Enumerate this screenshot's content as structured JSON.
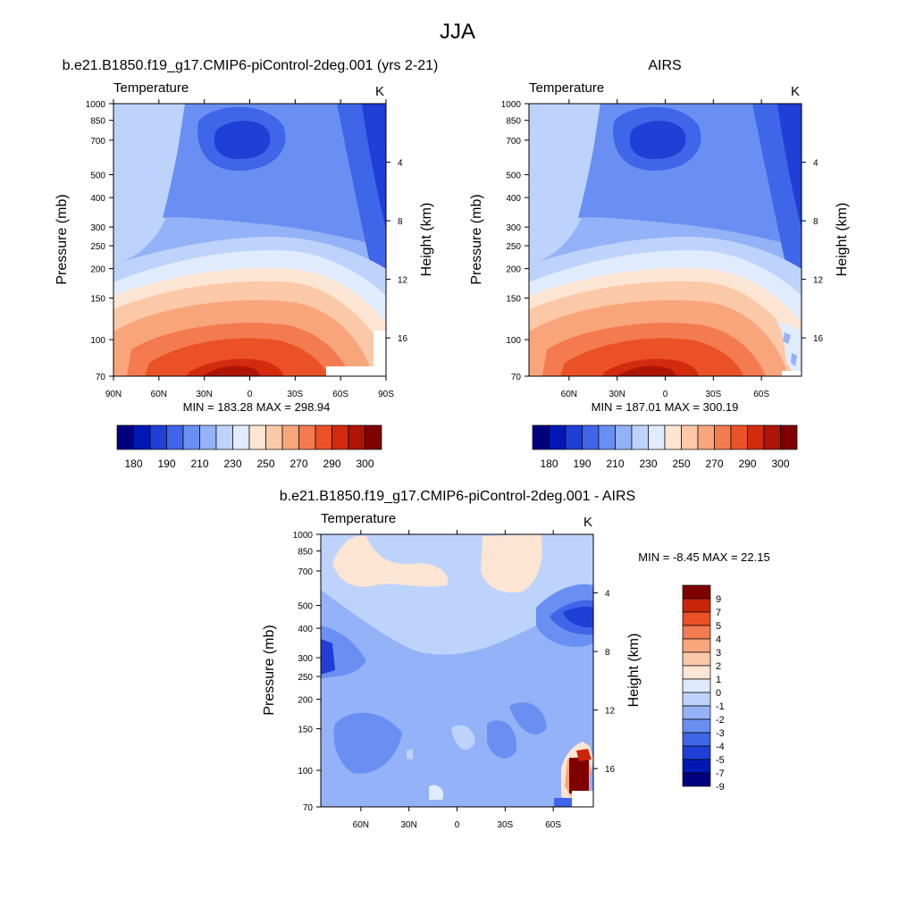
{
  "page": {
    "title": "JJA"
  },
  "panels": {
    "left": {
      "title": "b.e21.B1850.f19_g17.CMIP6-piControl-2deg.001 (yrs 2-21)",
      "subtitle": "Temperature",
      "units": "K",
      "stats": "MIN = 183.28  MAX = 298.94"
    },
    "right": {
      "title": "AIRS",
      "subtitle": "Temperature",
      "units": "K",
      "stats": "MIN = 187.01  MAX = 300.19"
    },
    "diff": {
      "title": "b.e21.B1850.f19_g17.CMIP6-piControl-2deg.001 - AIRS",
      "subtitle": "Temperature",
      "units": "K",
      "stats": "MIN =  -8.45  MAX =  22.15"
    }
  },
  "axes": {
    "ylabel_left": "Pressure (mb)",
    "ylabel_right": "Height (km)",
    "pressure_ticks": [
      "70",
      "100",
      "150",
      "200",
      "250",
      "300",
      "400",
      "500",
      "700",
      "850",
      "1000"
    ],
    "height_ticks": [
      "16",
      "12",
      "8",
      "4"
    ],
    "lat_ticks_full": [
      "90N",
      "60N",
      "30N",
      "0",
      "30S",
      "60S",
      "90S"
    ],
    "lat_ticks_inner": [
      "60N",
      "30N",
      "0",
      "30S",
      "60S"
    ]
  },
  "colors": {
    "abs_palette": [
      "#00007f",
      "#0019b4",
      "#1f3fd6",
      "#3f66e8",
      "#6a8ff2",
      "#93b2f7",
      "#bed3fb",
      "#e0ebfd",
      "#fde5d3",
      "#fcc9a8",
      "#f9a57c",
      "#f47a50",
      "#eb5126",
      "#d32b0e",
      "#ad1506",
      "#800000"
    ],
    "diff_palette": [
      "#00007f",
      "#0019b4",
      "#1f3fd6",
      "#3f66e8",
      "#6a8ff2",
      "#93b2f7",
      "#bed3fb",
      "#dde9fc",
      "#fde5d3",
      "#fcc9a8",
      "#f9a57c",
      "#f47a50",
      "#eb5126",
      "#c9250b",
      "#800000"
    ]
  },
  "chart_data": [
    {
      "type": "heatmap",
      "title": "b.e21.B1850.f19_g17.CMIP6-piControl-2deg.001 (yrs 2-21)",
      "xlabel": "",
      "ylabel": "Pressure (mb)",
      "ylabel_right": "Height (km)",
      "xlim": [
        90,
        -90
      ],
      "ylim_pressure_mb": [
        1000,
        70
      ],
      "colorbar": {
        "levels": [
          180,
          185,
          190,
          200,
          210,
          220,
          230,
          240,
          250,
          260,
          270,
          280,
          290,
          295,
          300
        ],
        "tick_labels": [
          "180",
          "190",
          "210",
          "230",
          "250",
          "270",
          "290",
          "300"
        ]
      },
      "min": 183.28,
      "max": 298.94
    },
    {
      "type": "heatmap",
      "title": "AIRS",
      "xlabel": "",
      "ylabel": "Pressure (mb)",
      "ylabel_right": "Height (km)",
      "xlim": [
        85,
        -85
      ],
      "ylim_pressure_mb": [
        1000,
        70
      ],
      "colorbar": {
        "levels": [
          180,
          185,
          190,
          200,
          210,
          220,
          230,
          240,
          250,
          260,
          270,
          280,
          290,
          295,
          300
        ],
        "tick_labels": [
          "180",
          "190",
          "210",
          "230",
          "250",
          "270",
          "290",
          "300"
        ]
      },
      "min": 187.01,
      "max": 300.19
    },
    {
      "type": "heatmap",
      "title": "b.e21.B1850.f19_g17.CMIP6-piControl-2deg.001 - AIRS",
      "xlabel": "",
      "ylabel": "Pressure (mb)",
      "ylabel_right": "Height (km)",
      "xlim": [
        85,
        -85
      ],
      "ylim_pressure_mb": [
        1000,
        70
      ],
      "colorbar": {
        "levels": [
          -9,
          -7,
          -5,
          -4,
          -3,
          -2,
          -1,
          0,
          1,
          2,
          3,
          4,
          5,
          7,
          9
        ],
        "tick_labels": [
          "9",
          "7",
          "5",
          "4",
          "3",
          "2",
          "1",
          "0",
          "-1",
          "-2",
          "-3",
          "-4",
          "-5",
          "-7",
          "-9"
        ]
      },
      "min": -8.45,
      "max": 22.15
    }
  ]
}
